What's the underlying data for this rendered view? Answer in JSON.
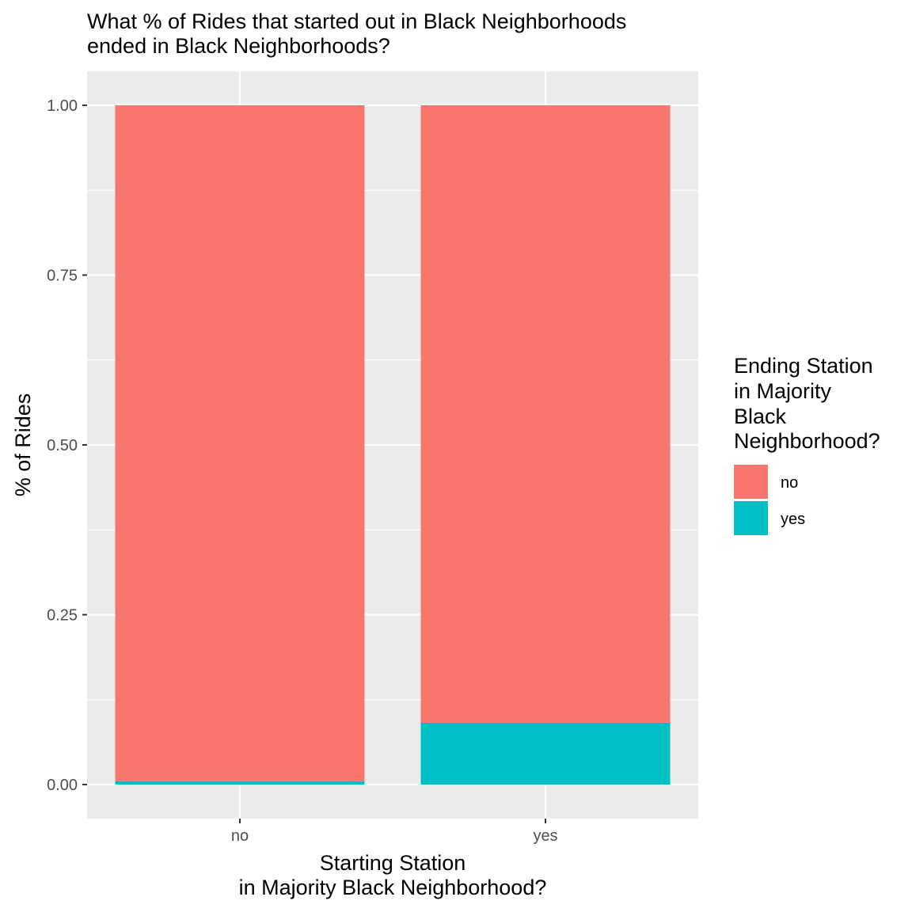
{
  "chart_data": {
    "type": "bar",
    "stacked": true,
    "title": [
      "What % of Rides that started out in Black Neighborhoods",
      "ended in Black Neighborhoods?"
    ],
    "xlabel": [
      "Starting Station",
      "in Majority Black Neighborhood?"
    ],
    "ylabel": "% of Rides",
    "categories": [
      "no",
      "yes"
    ],
    "ylim": [
      0,
      1.0
    ],
    "yticks": [
      0.0,
      0.25,
      0.5,
      0.75,
      1.0
    ],
    "ytick_labels": [
      "0.00",
      "0.25",
      "0.50",
      "0.75",
      "1.00"
    ],
    "grid": true,
    "legend": {
      "title": [
        "Ending Station",
        "in Majority",
        "Black",
        "Neighborhood?"
      ],
      "placement": "right"
    },
    "series": [
      {
        "name": "no",
        "color": "#F8766D",
        "values": [
          0.995,
          0.909
        ]
      },
      {
        "name": "yes",
        "color": "#00BFC4",
        "values": [
          0.005,
          0.091
        ]
      }
    ],
    "colors": {
      "panel_background": "#EBEBEB",
      "grid": "#FFFFFF"
    }
  }
}
